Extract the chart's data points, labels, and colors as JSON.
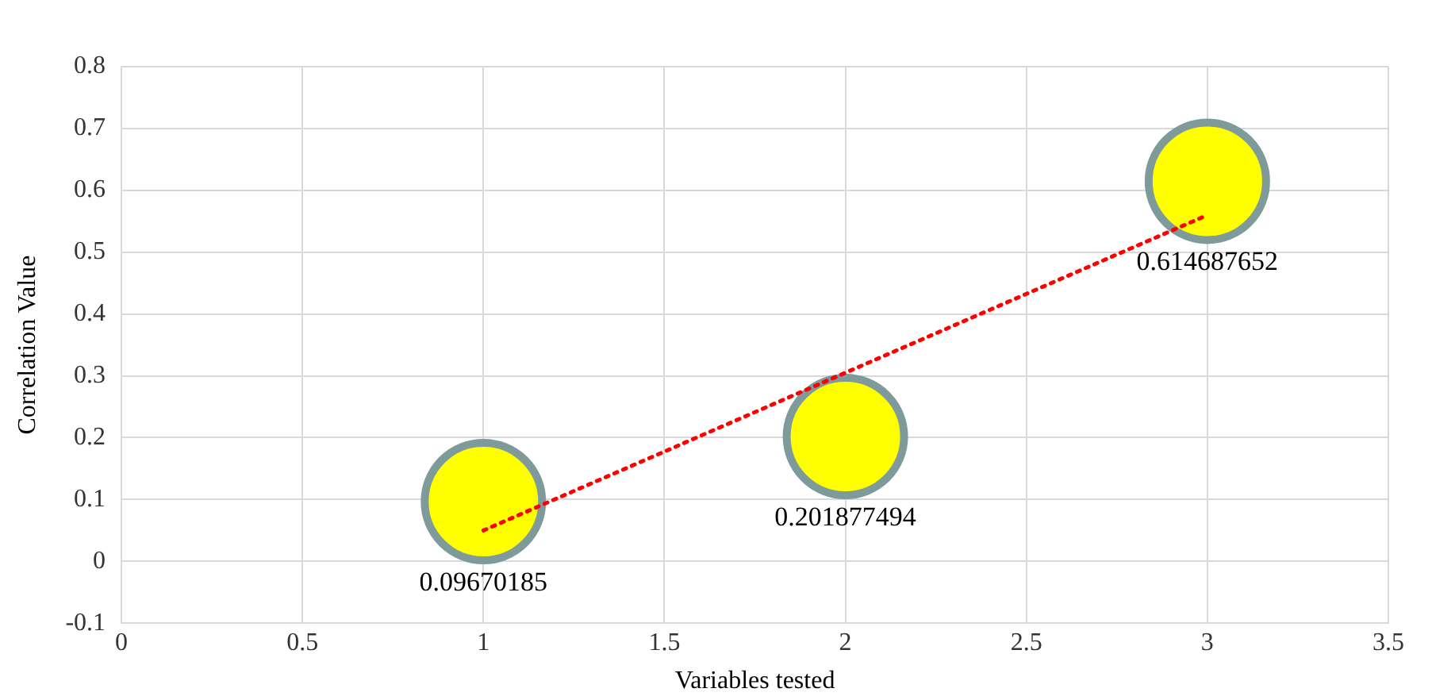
{
  "chart_data": {
    "type": "bubble",
    "xlabel": "Variables tested",
    "ylabel": "Correlation Value",
    "xlim": [
      0,
      3.5
    ],
    "xticks": [
      0,
      0.5,
      1,
      1.5,
      2,
      2.5,
      3,
      3.5
    ],
    "ylim": [
      -0.1,
      0.8
    ],
    "yticks": [
      -0.1,
      0,
      0.1,
      0.2,
      0.3,
      0.4,
      0.5,
      0.6,
      0.7,
      0.8
    ],
    "grid": true,
    "legend": false,
    "series": [
      {
        "x": [
          1,
          2,
          3
        ],
        "values": [
          0.09670185,
          0.201877494,
          0.614687652
        ],
        "value_labels": [
          "0.09670185",
          "0.201877494",
          "0.614687652"
        ],
        "sizes": [
          1,
          1,
          1
        ],
        "color": "#ffff00"
      },
      {
        "type": "line",
        "x": [
          1,
          3
        ],
        "values": [
          0.05,
          0.56
        ],
        "color": "#ff0000",
        "line_style": "dotted",
        "marker": "none"
      }
    ]
  }
}
